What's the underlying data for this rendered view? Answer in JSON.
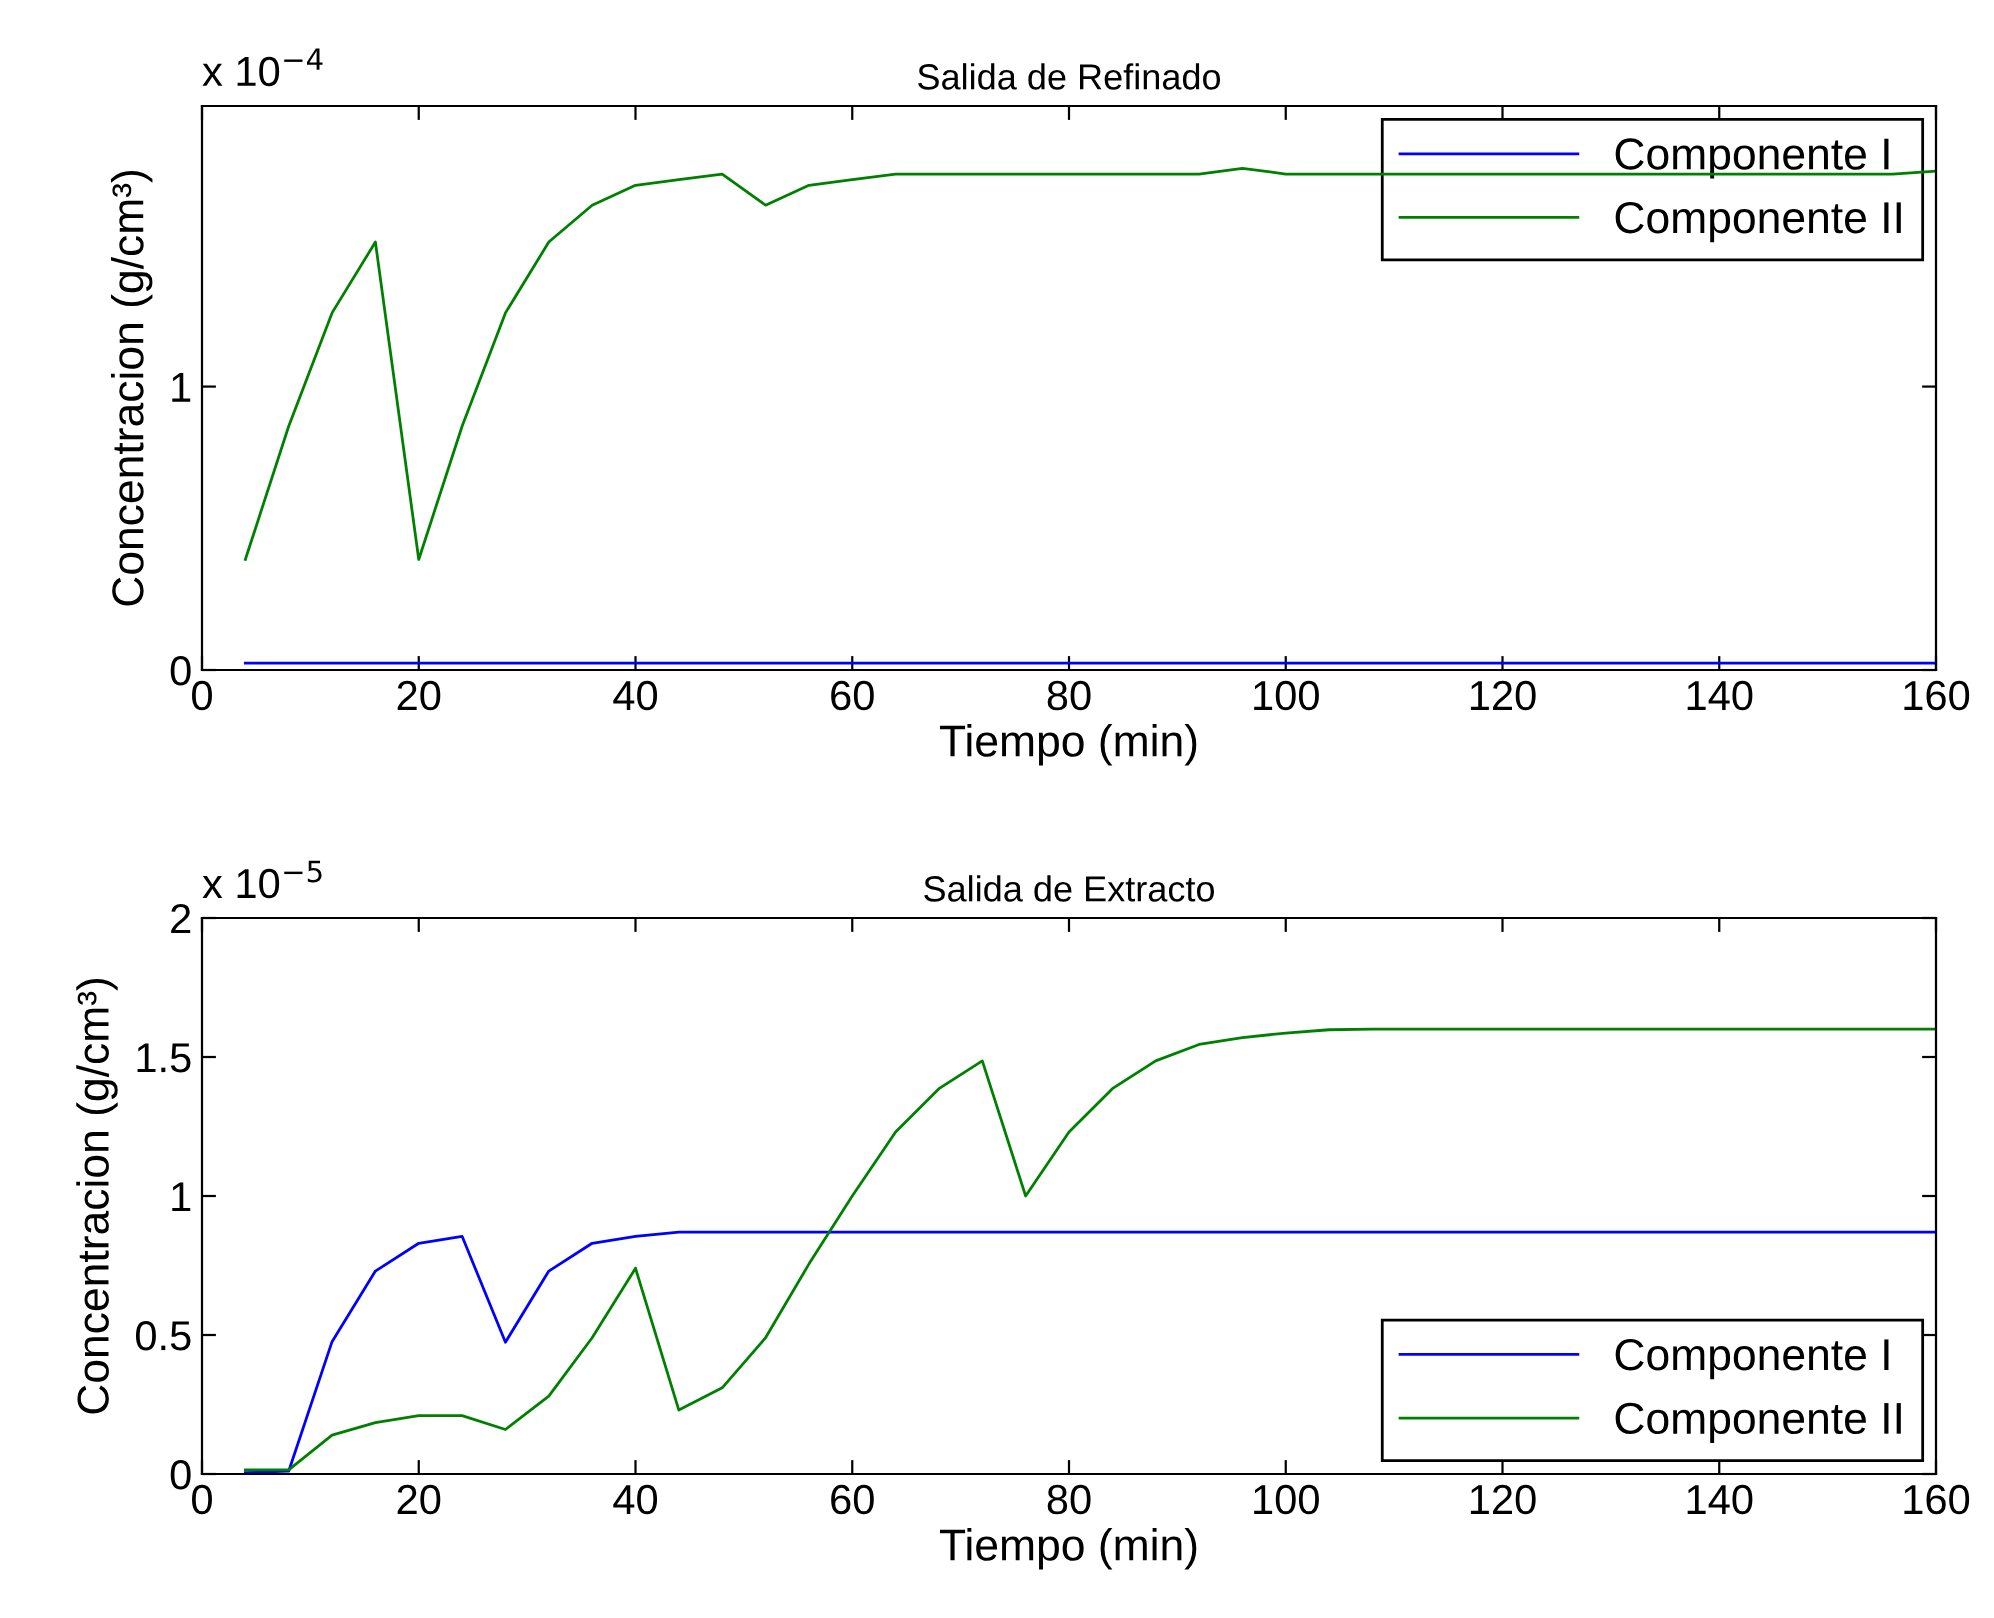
{
  "chart_data": [
    {
      "type": "line",
      "title": "Salida de Refinado",
      "xlabel": "Tiempo (min)",
      "ylabel": "Concentracion (g/cm³)",
      "annotations": [
        "x 10$^{−4}$"
      ],
      "x": [
        4,
        8,
        12,
        16,
        20,
        24,
        28,
        32,
        36,
        40,
        44,
        48,
        52,
        56,
        60,
        64,
        68,
        72,
        76,
        80,
        84,
        88,
        92,
        96,
        100,
        104,
        108,
        112,
        116,
        120,
        124,
        128,
        132,
        136,
        140,
        144,
        148,
        152,
        156,
        160
      ],
      "series": [
        {
          "name": "Componente I",
          "color": "#0000ff",
          "values": [
            0.024,
            0.024,
            0.024,
            0.024,
            0.024,
            0.024,
            0.024,
            0.024,
            0.024,
            0.024,
            0.024,
            0.024,
            0.024,
            0.024,
            0.024,
            0.024,
            0.024,
            0.024,
            0.024,
            0.024,
            0.024,
            0.024,
            0.024,
            0.024,
            0.024,
            0.024,
            0.024,
            0.024,
            0.024,
            0.024,
            0.024,
            0.024,
            0.024,
            0.024,
            0.024,
            0.024,
            0.024,
            0.024,
            0.024,
            0.024
          ]
        },
        {
          "name": "Componente II",
          "color": "#008000",
          "values": [
            0.39,
            0.86,
            1.26,
            1.51,
            0.39,
            0.86,
            1.26,
            1.51,
            1.64,
            1.71,
            1.73,
            1.75,
            1.64,
            1.71,
            1.73,
            1.75,
            1.75,
            1.75,
            1.75,
            1.75,
            1.75,
            1.75,
            1.75,
            1.77,
            1.75,
            1.75,
            1.75,
            1.75,
            1.75,
            1.75,
            1.75,
            1.75,
            1.75,
            1.75,
            1.75,
            1.75,
            1.75,
            1.75,
            1.75,
            1.76
          ]
        }
      ],
      "xlim": [
        0,
        160
      ],
      "xticks": [
        0,
        20,
        40,
        60,
        80,
        100,
        120,
        140,
        160
      ],
      "ylim": [
        0,
        1.99
      ],
      "yticks": [
        0,
        1
      ],
      "legend": "top right",
      "grid": false
    },
    {
      "type": "line",
      "title": "Salida de Extracto",
      "xlabel": "Tiempo (min)",
      "ylabel": "Concentracion (g/cm³)",
      "annotations": [
        "x 10$^{−5}$"
      ],
      "x": [
        4,
        8,
        12,
        16,
        20,
        24,
        28,
        32,
        36,
        40,
        44,
        48,
        52,
        56,
        60,
        64,
        68,
        72,
        76,
        80,
        84,
        88,
        92,
        96,
        100,
        104,
        108,
        112,
        116,
        120,
        124,
        128,
        132,
        136,
        140,
        144,
        148,
        152,
        156,
        160
      ],
      "series": [
        {
          "name": "Componente I",
          "color": "#0000ff",
          "values": [
            0.005,
            0.01,
            0.476,
            0.73,
            0.83,
            0.855,
            0.474,
            0.73,
            0.83,
            0.855,
            0.87,
            0.87,
            0.87,
            0.87,
            0.87,
            0.87,
            0.87,
            0.87,
            0.87,
            0.87,
            0.87,
            0.87,
            0.87,
            0.87,
            0.87,
            0.87,
            0.87,
            0.87,
            0.87,
            0.87,
            0.87,
            0.87,
            0.87,
            0.87,
            0.87,
            0.87,
            0.87,
            0.87,
            0.87,
            0.87
          ]
        },
        {
          "name": "Componente II",
          "color": "#008000",
          "values": [
            0.015,
            0.015,
            0.14,
            0.185,
            0.21,
            0.21,
            0.16,
            0.28,
            0.49,
            0.74,
            0.23,
            0.31,
            0.49,
            0.755,
            1.0,
            1.23,
            1.386,
            1.486,
            1.0,
            1.23,
            1.386,
            1.486,
            1.545,
            1.57,
            1.586,
            1.598,
            1.6,
            1.6,
            1.6,
            1.6,
            1.6,
            1.6,
            1.6,
            1.6,
            1.6,
            1.6,
            1.6,
            1.6,
            1.6,
            1.6
          ]
        }
      ],
      "xlim": [
        0,
        160
      ],
      "xticks": [
        0,
        20,
        40,
        60,
        80,
        100,
        120,
        140,
        160
      ],
      "ylim": [
        0,
        2
      ],
      "yticks": [
        0,
        0.5,
        1,
        1.5,
        2
      ],
      "legend": "bottom right",
      "grid": false
    }
  ]
}
